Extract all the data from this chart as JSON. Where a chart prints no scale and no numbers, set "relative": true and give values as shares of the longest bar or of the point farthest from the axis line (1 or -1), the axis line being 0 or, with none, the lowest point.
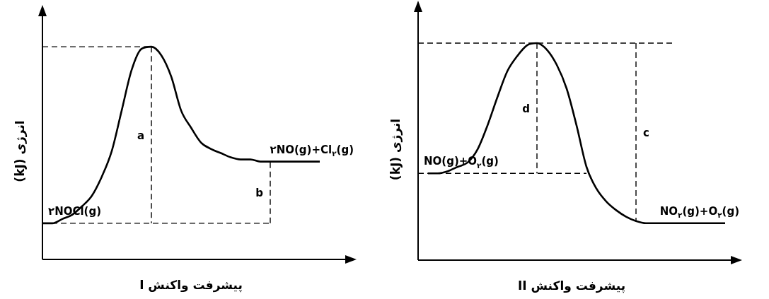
{
  "chart_data": [
    {
      "type": "line",
      "relative": true,
      "xlabel": "پیشرفت واکنش I",
      "ylabel": "انرژی (kJ)",
      "tick_labels": false,
      "grid": false,
      "marker": "none",
      "categories": [
        null,
        null,
        null,
        null,
        null,
        null,
        null,
        null,
        null,
        null,
        null,
        null,
        null,
        null,
        null,
        null,
        null,
        null,
        null,
        null,
        null,
        null,
        null,
        null,
        null,
        null,
        null,
        null,
        null,
        null,
        null
      ],
      "series": [
        {
          "color": "#000000",
          "line_style": "solid",
          "values": [
            0.17,
            0.17,
            0.19,
            0.21,
            0.25,
            0.3,
            0.39,
            0.51,
            0.7,
            0.89,
            0.99,
            1.0,
            0.96,
            0.86,
            0.7,
            0.62,
            0.55,
            0.52,
            0.5,
            0.48,
            0.47,
            0.47,
            0.46,
            0.46,
            0.46,
            0.46,
            0.46,
            0.46,
            0.46,
            null,
            null
          ]
        },
        {
          "color": "#000000",
          "line_style": "dashed",
          "values": [
            1.0,
            1.0,
            1.0,
            1.0,
            1.0,
            1.0,
            1.0,
            1.0,
            1.0,
            1.0,
            1.0,
            1.0,
            null,
            null,
            null,
            null,
            null,
            null,
            null,
            null,
            null,
            null,
            null,
            null,
            null,
            null,
            null,
            null,
            null,
            null,
            null
          ]
        },
        {
          "color": "#000000",
          "line_style": "dashed",
          "values": [
            0.17,
            0.17,
            0.17,
            0.17,
            0.17,
            0.17,
            0.17,
            0.17,
            0.17,
            0.17,
            0.17,
            0.17,
            0.17,
            0.17,
            0.17,
            0.17,
            0.17,
            0.17,
            0.17,
            0.17,
            0.17,
            0.17,
            0.17,
            0.17,
            null,
            null,
            null,
            null,
            null,
            null,
            null
          ]
        }
      ],
      "annotations": [
        {
          "text": "۲NOCl(g)",
          "y": 0.17
        },
        {
          "text": "۲NO(g)+Cl$_{۲}$(g)",
          "y": 0.46
        },
        "a",
        "b"
      ]
    },
    {
      "type": "line",
      "relative": true,
      "xlabel": "پیشرفت واکنش II",
      "ylabel": "انرژی (kJ)",
      "tick_labels": false,
      "grid": false,
      "marker": "none",
      "categories": [
        null,
        null,
        null,
        null,
        null,
        null,
        null,
        null,
        null,
        null,
        null,
        null,
        null,
        null,
        null,
        null,
        null,
        null,
        null,
        null,
        null,
        null,
        null,
        null,
        null,
        null,
        null,
        null,
        null,
        null,
        null,
        null
      ],
      "series": [
        {
          "color": "#000000",
          "line_style": "solid",
          "values": [
            null,
            0.4,
            0.4,
            0.41,
            0.43,
            0.45,
            0.51,
            0.62,
            0.75,
            0.87,
            0.94,
            0.99,
            1.0,
            0.97,
            0.9,
            0.79,
            0.62,
            0.43,
            0.33,
            0.27,
            0.23,
            0.2,
            0.18,
            0.17,
            0.17,
            0.17,
            0.17,
            0.17,
            0.17,
            0.17,
            0.17,
            0.17
          ]
        },
        {
          "color": "#000000",
          "line_style": "dashed",
          "values": [
            1.0,
            1.0,
            1.0,
            1.0,
            1.0,
            1.0,
            1.0,
            1.0,
            1.0,
            1.0,
            1.0,
            1.0,
            1.0,
            1.0,
            1.0,
            1.0,
            1.0,
            1.0,
            1.0,
            1.0,
            1.0,
            1.0,
            1.0,
            1.0,
            1.0,
            1.0,
            1.0,
            null,
            null,
            null,
            null,
            null
          ]
        },
        {
          "color": "#000000",
          "line_style": "dashed",
          "values": [
            0.4,
            0.4,
            0.4,
            0.4,
            0.4,
            0.4,
            0.4,
            0.4,
            0.4,
            0.4,
            0.4,
            0.4,
            0.4,
            0.4,
            0.4,
            0.4,
            0.4,
            0.4,
            null,
            null,
            null,
            null,
            null,
            null,
            null,
            null,
            null,
            null,
            null,
            null,
            null,
            null
          ]
        }
      ],
      "annotations": [
        {
          "text": "NO(g)+O$_{۲}$(g)",
          "y": 0.4
        },
        {
          "text": "NO$_{۲}$(g)+O$_{۲}$(g)",
          "y": 0.17
        },
        "d",
        "c"
      ]
    }
  ]
}
